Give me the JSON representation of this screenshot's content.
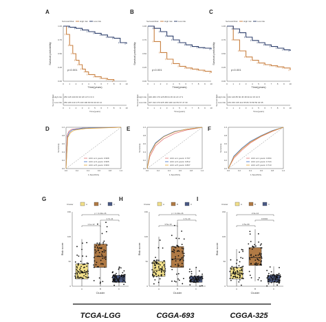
{
  "figure": {
    "km": [
      {
        "panel": "A",
        "legend": [
          "Survival Risk",
          "High risk",
          "Low risk"
        ],
        "pvalue": "p<0.001",
        "ylabel": "Survival probability",
        "xlabel": "Time(years)",
        "risk_title": "Survival Risk",
        "risk_rows": [
          "High risk",
          "Low risk"
        ],
        "high_counts": "250 145 100 60 30 18 10 5 3 0 0",
        "low_counts": "250 226 210 175 130 100 80 60 40 20 14",
        "xticks": [
          "0",
          "1",
          "2",
          "3",
          "4",
          "5",
          "6",
          "7",
          "8",
          "9",
          "10"
        ]
      },
      {
        "panel": "B",
        "legend": [
          "Survival Risk",
          "High risk",
          "Low risk"
        ],
        "pvalue": "p<0.001",
        "ylabel": "Survival probability",
        "xlabel": "Time(years)",
        "risk_title": "Survival Risk",
        "risk_rows": [
          "High risk",
          "Low risk"
        ],
        "high_counts": "346 260 179 125 88 64 45 34 23 17 9",
        "low_counts": "347 312 270 225 180 146 112 83 67 47 30",
        "xticks": [
          "0",
          "1",
          "2",
          "3",
          "4",
          "5",
          "6",
          "7",
          "8",
          "9",
          "10"
        ]
      },
      {
        "panel": "C",
        "legend": [
          "Survival Risk",
          "High risk",
          "Low risk"
        ],
        "pvalue": "p<0.001",
        "ylabel": "Survival probability",
        "xlabel": "Time(years)",
        "risk_title": "Survival Risk",
        "risk_rows": [
          "High risk",
          "Low risk"
        ],
        "high_counts": "162 126 85 60 45 38 30 22 15 10 8",
        "low_counts": "163 150 135 112 95 86 70 58 50 40 35",
        "xticks": [
          "0",
          "1",
          "2",
          "3",
          "4",
          "5",
          "6",
          "7",
          "8",
          "9",
          "10"
        ]
      }
    ],
    "roc": [
      {
        "panel": "D",
        "ylabel": "Sensitivity",
        "xlabel": "1-Specificity",
        "auc": [
          "AUC at 1 years: 0.968",
          "AUC at 3 years: 0.965",
          "AUC at 5 years: 0.960"
        ]
      },
      {
        "panel": "E",
        "ylabel": "Sensitivity",
        "xlabel": "1-Specificity",
        "auc": [
          "AUC at 1 years: 0.767",
          "AUC at 3 years: 0.812",
          "AUC at 5 years: 0.807"
        ]
      },
      {
        "panel": "F",
        "ylabel": "Sensitivity",
        "xlabel": "1-Specificity",
        "auc": [
          "AUC at 1 years: 0.694",
          "AUC at 3 years: 0.724",
          "AUC at 5 years: 0.710"
        ]
      }
    ],
    "box": [
      {
        "panel": "G",
        "legend_title": "Cluster",
        "legend": [
          "A",
          "B",
          "C"
        ],
        "ylabel": "Risk score",
        "xlabel": "Cluster",
        "pvals": [
          "p = 2.22e-16",
          "1.7e-11",
          "1.1e-12"
        ]
      },
      {
        "panel": "H",
        "legend_title": "Cluster",
        "legend": [
          "A",
          "B",
          "C"
        ],
        "ylabel": "Risk score",
        "xlabel": "Cluster",
        "pvals": [
          "p = 2.22e-16",
          "1.7e-14",
          "3.5e-10"
        ]
      },
      {
        "panel": "I",
        "legend_title": "Cluster",
        "legend": [
          "A",
          "B",
          "C"
        ],
        "ylabel": "Risk score",
        "xlabel": "Cluster",
        "pvals": [
          "2.3e-14",
          "0.0004",
          "2.5e-09"
        ]
      }
    ],
    "footer": [
      "TCGA-LGG",
      "CGGA-693",
      "CGGA-325"
    ]
  },
  "chart_data": [
    {
      "type": "line",
      "title": "A",
      "xlabel": "Time(years)",
      "ylabel": "Survival probability",
      "xlim": [
        0,
        10
      ],
      "ylim": [
        0,
        1
      ],
      "series": [
        {
          "name": "High risk",
          "color": "#c87f3f",
          "x": [
            0,
            0.5,
            1,
            1.5,
            2,
            2.5,
            3,
            3.5,
            4,
            5,
            6,
            7,
            8
          ],
          "values": [
            1,
            0.85,
            0.65,
            0.5,
            0.38,
            0.3,
            0.22,
            0.17,
            0.12,
            0.08,
            0.05,
            0.03,
            0
          ]
        },
        {
          "name": "Low risk",
          "color": "#2c3e6b",
          "x": [
            0,
            1,
            2,
            3,
            4,
            5,
            6,
            7,
            8,
            9,
            10
          ],
          "values": [
            1,
            0.98,
            0.96,
            0.93,
            0.9,
            0.87,
            0.84,
            0.8,
            0.78,
            0.7,
            0.68
          ]
        }
      ]
    },
    {
      "type": "line",
      "title": "B",
      "xlabel": "Time(years)",
      "ylabel": "Survival probability",
      "xlim": [
        0,
        10
      ],
      "ylim": [
        0,
        1
      ],
      "series": [
        {
          "name": "High risk",
          "color": "#c87f3f",
          "x": [
            0,
            1,
            2,
            3,
            4,
            5,
            6,
            7,
            8,
            9,
            10
          ],
          "values": [
            1,
            0.72,
            0.52,
            0.4,
            0.32,
            0.27,
            0.24,
            0.22,
            0.2,
            0.18,
            0.15
          ]
        },
        {
          "name": "Low risk",
          "color": "#2c3e6b",
          "x": [
            0,
            1,
            2,
            3,
            4,
            5,
            6,
            7,
            8,
            9,
            10
          ],
          "values": [
            1,
            0.96,
            0.9,
            0.82,
            0.75,
            0.7,
            0.66,
            0.63,
            0.61,
            0.6,
            0.58
          ]
        }
      ]
    },
    {
      "type": "line",
      "title": "C",
      "xlabel": "Time(years)",
      "ylabel": "Survival probability",
      "xlim": [
        0,
        10
      ],
      "ylim": [
        0,
        1
      ],
      "series": [
        {
          "name": "High risk",
          "color": "#c87f3f",
          "x": [
            0,
            1,
            2,
            3,
            4,
            5,
            6,
            7,
            8,
            9,
            10
          ],
          "values": [
            1,
            0.75,
            0.55,
            0.44,
            0.38,
            0.33,
            0.3,
            0.28,
            0.26,
            0.24,
            0.2
          ]
        },
        {
          "name": "Low risk",
          "color": "#2c3e6b",
          "x": [
            0,
            1,
            2,
            3,
            4,
            5,
            6,
            7,
            8,
            9,
            10
          ],
          "values": [
            1,
            0.95,
            0.88,
            0.8,
            0.74,
            0.7,
            0.66,
            0.63,
            0.6,
            0.57,
            0.55
          ]
        }
      ]
    },
    {
      "type": "line",
      "title": "D",
      "xlabel": "1-Specificity",
      "ylabel": "Sensitivity",
      "xlim": [
        0,
        1
      ],
      "ylim": [
        0,
        1
      ],
      "series": [
        {
          "name": "AUC at 1 years: 0.968",
          "color": "#e07070",
          "x": [
            0,
            0.02,
            0.05,
            0.1,
            0.3,
            1
          ],
          "values": [
            0,
            0.8,
            0.9,
            0.95,
            0.98,
            1
          ]
        },
        {
          "name": "AUC at 3 years: 0.965",
          "color": "#3a6bc4",
          "x": [
            0,
            0.03,
            0.06,
            0.12,
            0.3,
            1
          ],
          "values": [
            0,
            0.78,
            0.88,
            0.94,
            0.98,
            1
          ]
        },
        {
          "name": "AUC at 5 years: 0.960",
          "color": "#e0a030",
          "x": [
            0,
            0.03,
            0.08,
            0.15,
            0.35,
            1
          ],
          "values": [
            0,
            0.75,
            0.87,
            0.93,
            0.97,
            1
          ]
        }
      ]
    },
    {
      "type": "line",
      "title": "E",
      "xlabel": "1-Specificity",
      "ylabel": "Sensitivity",
      "xlim": [
        0,
        1
      ],
      "ylim": [
        0,
        1
      ],
      "series": [
        {
          "name": "AUC at 1 years: 0.767",
          "color": "#e07070",
          "x": [
            0,
            0.05,
            0.15,
            0.3,
            0.5,
            0.7,
            1
          ],
          "values": [
            0,
            0.3,
            0.55,
            0.72,
            0.85,
            0.93,
            1
          ]
        },
        {
          "name": "AUC at 3 years: 0.812",
          "color": "#3a6bc4",
          "x": [
            0,
            0.05,
            0.15,
            0.3,
            0.5,
            0.7,
            1
          ],
          "values": [
            0,
            0.38,
            0.62,
            0.78,
            0.9,
            0.95,
            1
          ]
        },
        {
          "name": "AUC at 5 years: 0.807",
          "color": "#e0a030",
          "x": [
            0,
            0.05,
            0.15,
            0.3,
            0.5,
            0.7,
            1
          ],
          "values": [
            0,
            0.36,
            0.6,
            0.77,
            0.89,
            0.95,
            1
          ]
        }
      ]
    },
    {
      "type": "line",
      "title": "F",
      "xlabel": "1-Specificity",
      "ylabel": "Sensitivity",
      "xlim": [
        0,
        1
      ],
      "ylim": [
        0,
        1
      ],
      "series": [
        {
          "name": "AUC at 1 years: 0.694",
          "color": "#e07070",
          "x": [
            0,
            0.1,
            0.25,
            0.4,
            0.6,
            0.8,
            1
          ],
          "values": [
            0,
            0.25,
            0.45,
            0.62,
            0.78,
            0.9,
            1
          ]
        },
        {
          "name": "AUC at 3 years: 0.724",
          "color": "#3a6bc4",
          "x": [
            0,
            0.1,
            0.25,
            0.4,
            0.6,
            0.8,
            1
          ],
          "values": [
            0,
            0.3,
            0.5,
            0.66,
            0.8,
            0.92,
            1
          ]
        },
        {
          "name": "AUC at 5 years: 0.710",
          "color": "#e0a030",
          "x": [
            0,
            0.1,
            0.25,
            0.4,
            0.6,
            0.8,
            1
          ],
          "values": [
            0,
            0.28,
            0.48,
            0.64,
            0.79,
            0.91,
            1
          ]
        }
      ]
    },
    {
      "type": "box",
      "title": "G",
      "xlabel": "Cluster",
      "ylabel": "Risk score",
      "ylim": [
        0,
        150
      ],
      "categories": [
        "A",
        "B",
        "C"
      ],
      "boxes": [
        {
          "q1": 15,
          "median": 28,
          "q3": 45,
          "low": 0,
          "high": 95,
          "color": "#f2e08a"
        },
        {
          "q1": 38,
          "median": 60,
          "q3": 85,
          "low": 0,
          "high": 130,
          "color": "#b07a45"
        },
        {
          "q1": 8,
          "median": 15,
          "q3": 22,
          "low": 0,
          "high": 40,
          "color": "#4b5a85"
        }
      ]
    },
    {
      "type": "box",
      "title": "H",
      "xlabel": "Cluster",
      "ylabel": "Risk score",
      "ylim": [
        0,
        150
      ],
      "categories": [
        "A",
        "B",
        "C"
      ],
      "boxes": [
        {
          "q1": 20,
          "median": 32,
          "q3": 50,
          "low": 0,
          "high": 100,
          "color": "#f2e08a"
        },
        {
          "q1": 38,
          "median": 55,
          "q3": 80,
          "low": 0,
          "high": 130,
          "color": "#b07a45"
        },
        {
          "q1": 8,
          "median": 13,
          "q3": 20,
          "low": 0,
          "high": 38,
          "color": "#4b5a85"
        }
      ]
    },
    {
      "type": "box",
      "title": "I",
      "xlabel": "Cluster",
      "ylabel": "Risk score",
      "ylim": [
        0,
        150
      ],
      "categories": [
        "A",
        "B",
        "C"
      ],
      "boxes": [
        {
          "q1": 15,
          "median": 25,
          "q3": 38,
          "low": 0,
          "high": 75,
          "color": "#f2e08a"
        },
        {
          "q1": 42,
          "median": 58,
          "q3": 78,
          "low": 10,
          "high": 115,
          "color": "#b07a45"
        },
        {
          "q1": 8,
          "median": 14,
          "q3": 22,
          "low": 0,
          "high": 40,
          "color": "#4b5a85"
        }
      ]
    }
  ]
}
